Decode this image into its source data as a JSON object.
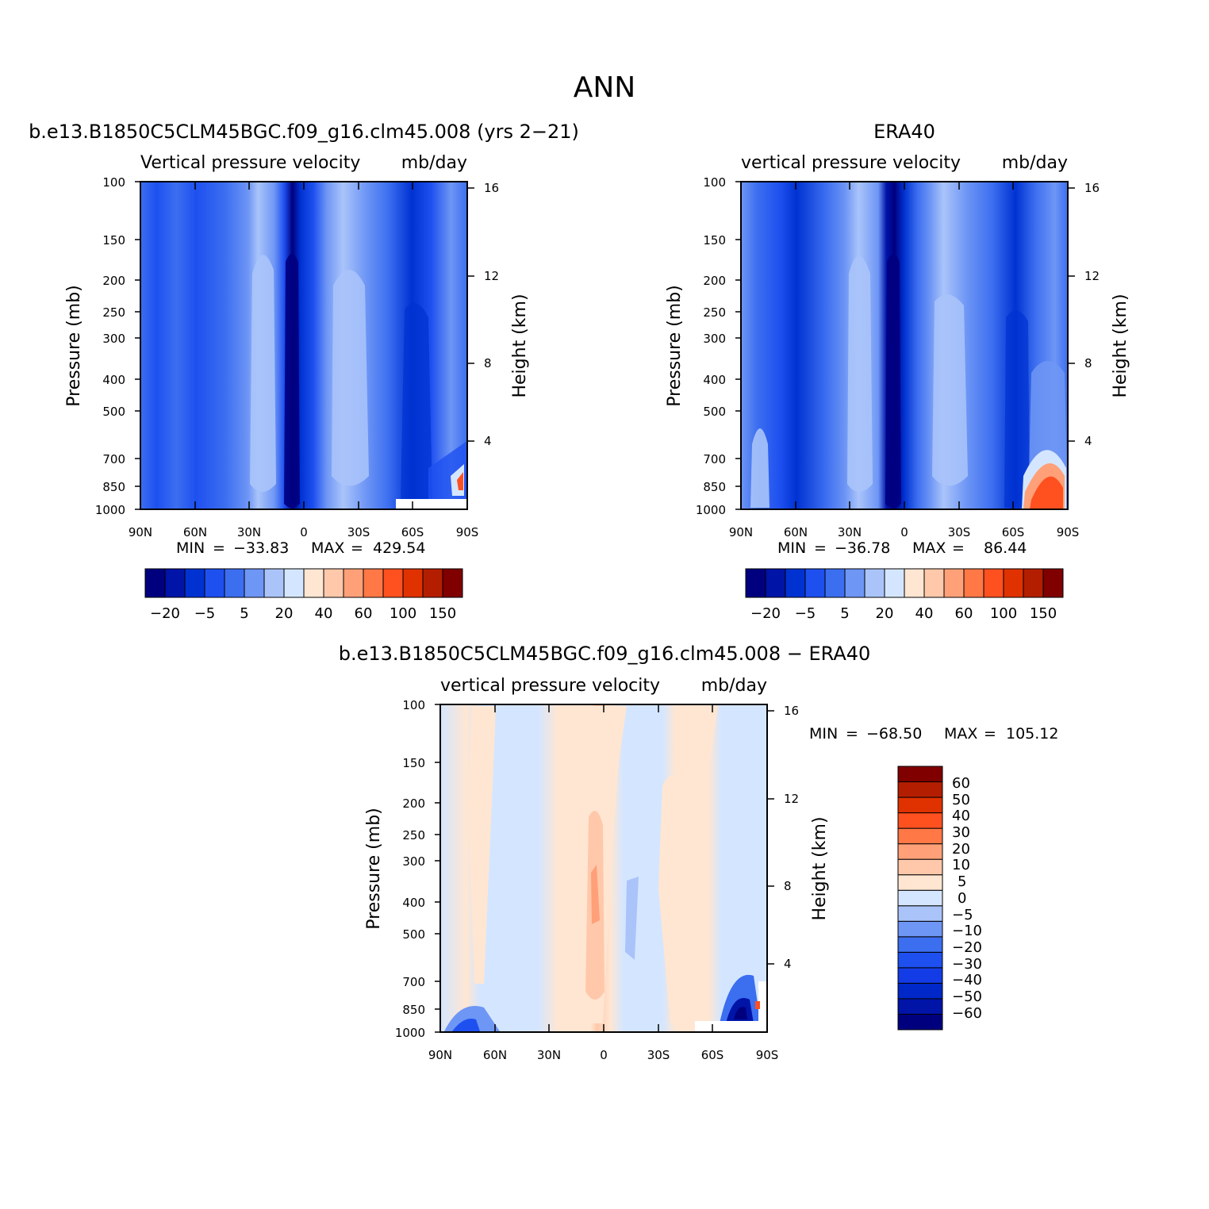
{
  "figure": {
    "title": "ANN"
  },
  "colors": {
    "panel_scale": [
      "#00007f",
      "#0014a8",
      "#0032d2",
      "#1e50f0",
      "#3c6ef0",
      "#6e96f5",
      "#aac4fa",
      "#d4e6ff",
      "#ffe6d2",
      "#ffc8aa",
      "#ffa078",
      "#ff7846",
      "#ff5020",
      "#e03200",
      "#b41e00",
      "#800000"
    ],
    "diff_scale": [
      "#00007f",
      "#0014a8",
      "#0028c8",
      "#143ce6",
      "#1e50f0",
      "#3c6ef0",
      "#6e96f5",
      "#aac4fa",
      "#d4e6ff",
      "#ffe6d2",
      "#ffc8aa",
      "#ffa078",
      "#ff7846",
      "#ff5020",
      "#e03200",
      "#b41e00",
      "#800000"
    ]
  },
  "chart_data": [
    {
      "type": "heatmap",
      "panel": "model",
      "title": "b.e13.B1850C5CLM45BGC.f09_g16.clm45.008 (yrs 2-21)",
      "left_label": "Vertical pressure velocity",
      "right_label": "mb/day",
      "ylabel": "Pressure (mb)",
      "ylabel_right": "Height (km)",
      "x_ticks": [
        "90N",
        "60N",
        "30N",
        "0",
        "30S",
        "60S",
        "90S"
      ],
      "y_ticks": [
        "100",
        "150",
        "200",
        "250",
        "300",
        "400",
        "500",
        "700",
        "850",
        "1000"
      ],
      "y_ticks_right": [
        "16",
        "12",
        "8",
        "4"
      ],
      "stats": {
        "min_label": "MIN",
        "min_value": "-33.83",
        "max_label": "MAX",
        "max_value": "429.54"
      },
      "colorbar_labels": [
        "-20",
        "-5",
        "5",
        "20",
        "40",
        "60",
        "100",
        "150"
      ],
      "xlim": [
        90,
        -90
      ],
      "ylim": [
        1000,
        100
      ],
      "columns": [
        {
          "lat": 82,
          "omega": -15
        },
        {
          "lat": 75,
          "omega": -8
        },
        {
          "lat": 62,
          "omega": -18
        },
        {
          "lat": 45,
          "omega": -10
        },
        {
          "lat": 30,
          "omega": 8
        },
        {
          "lat": 22,
          "omega": 15
        },
        {
          "lat": 12,
          "omega": -20
        },
        {
          "lat": 5,
          "omega": -33
        },
        {
          "lat": -3,
          "omega": -18
        },
        {
          "lat": -25,
          "omega": 20
        },
        {
          "lat": -40,
          "omega": 10
        },
        {
          "lat": -58,
          "omega": -20
        },
        {
          "lat": -75,
          "omega": -5
        }
      ]
    },
    {
      "type": "heatmap",
      "panel": "obs",
      "title": "ERA40",
      "left_label": "vertical pressure velocity",
      "right_label": "mb/day",
      "ylabel": "Pressure (mb)",
      "ylabel_right": "Height (km)",
      "x_ticks": [
        "90N",
        "60N",
        "30N",
        "0",
        "30S",
        "60S",
        "90S"
      ],
      "y_ticks": [
        "100",
        "150",
        "200",
        "250",
        "300",
        "400",
        "500",
        "700",
        "850",
        "1000"
      ],
      "y_ticks_right": [
        "16",
        "12",
        "8",
        "4"
      ],
      "stats": {
        "min_label": "MIN",
        "min_value": "-36.78",
        "max_label": "MAX",
        "max_value": "86.44"
      },
      "colorbar_labels": [
        "-20",
        "-5",
        "5",
        "20",
        "40",
        "60",
        "100",
        "150"
      ],
      "xlim": [
        90,
        -90
      ],
      "ylim": [
        1000,
        100
      ],
      "columns": [
        {
          "lat": 82,
          "omega": 5
        },
        {
          "lat": 72,
          "omega": -10
        },
        {
          "lat": 60,
          "omega": -18
        },
        {
          "lat": 45,
          "omega": -10
        },
        {
          "lat": 28,
          "omega": 12
        },
        {
          "lat": 20,
          "omega": 18
        },
        {
          "lat": 10,
          "omega": -22
        },
        {
          "lat": 5,
          "omega": -36
        },
        {
          "lat": -5,
          "omega": -18
        },
        {
          "lat": -22,
          "omega": 22
        },
        {
          "lat": -38,
          "omega": 10
        },
        {
          "lat": -58,
          "omega": -20
        },
        {
          "lat": -78,
          "omega": 60
        }
      ]
    },
    {
      "type": "heatmap",
      "panel": "difference",
      "title": "b.e13.B1850C5CLM45BGC.f09_g16.clm45.008 - ERA40",
      "left_label": "vertical pressure velocity",
      "right_label": "mb/day",
      "ylabel": "Pressure (mb)",
      "ylabel_right": "Height (km)",
      "x_ticks": [
        "90N",
        "60N",
        "30N",
        "0",
        "30S",
        "60S",
        "90S"
      ],
      "y_ticks": [
        "100",
        "150",
        "200",
        "250",
        "300",
        "400",
        "500",
        "700",
        "850",
        "1000"
      ],
      "y_ticks_right": [
        "16",
        "12",
        "8",
        "4"
      ],
      "stats": {
        "min_label": "MIN",
        "min_value": "-68.50",
        "max_label": "MAX",
        "max_value": "105.12"
      },
      "colorbar_labels": [
        "60",
        "50",
        "40",
        "30",
        "20",
        "10",
        "5",
        "0",
        "-5",
        "-10",
        "-20",
        "-30",
        "-40",
        "-50",
        "-60"
      ],
      "xlim": [
        90,
        -90
      ],
      "ylim": [
        1000,
        100
      ],
      "columns": [
        {
          "lat": 85,
          "omega": 2
        },
        {
          "lat": 72,
          "omega": 3
        },
        {
          "lat": 55,
          "omega": -2
        },
        {
          "lat": 32,
          "omega": 3
        },
        {
          "lat": 5,
          "omega": 8
        },
        {
          "lat": -15,
          "omega": -3
        },
        {
          "lat": -38,
          "omega": 3
        },
        {
          "lat": -75,
          "omega": -20
        }
      ]
    }
  ]
}
